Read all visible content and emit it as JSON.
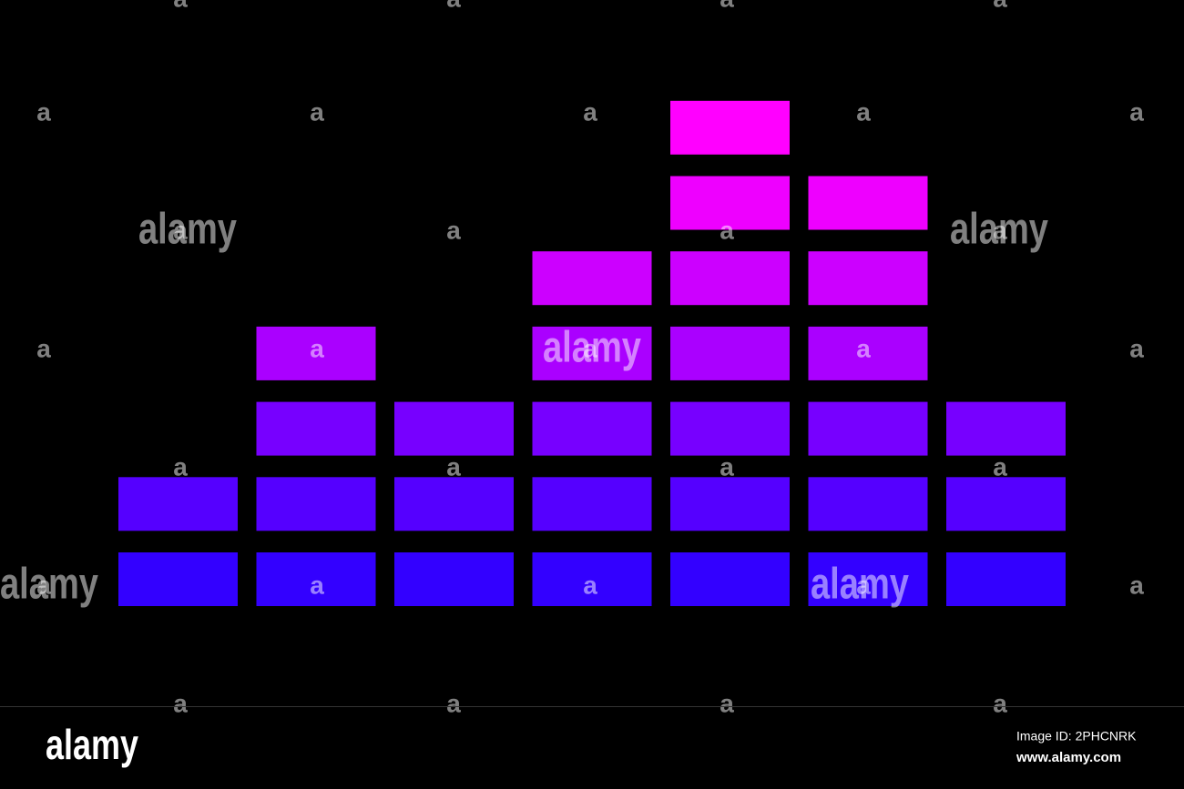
{
  "graphic": {
    "columns": [
      2,
      4,
      3,
      5,
      7,
      6,
      3
    ],
    "row_colors": [
      "#3300ff",
      "#5500ff",
      "#7700ff",
      "#aa00ff",
      "#cc00ff",
      "#ee00ff",
      "#ff00ff"
    ]
  },
  "watermark": {
    "word": "alamy",
    "letter": "a"
  },
  "footer": {
    "logo": "alamy",
    "image_id": "Image ID: 2PHCNRK",
    "url": "www.alamy.com"
  }
}
